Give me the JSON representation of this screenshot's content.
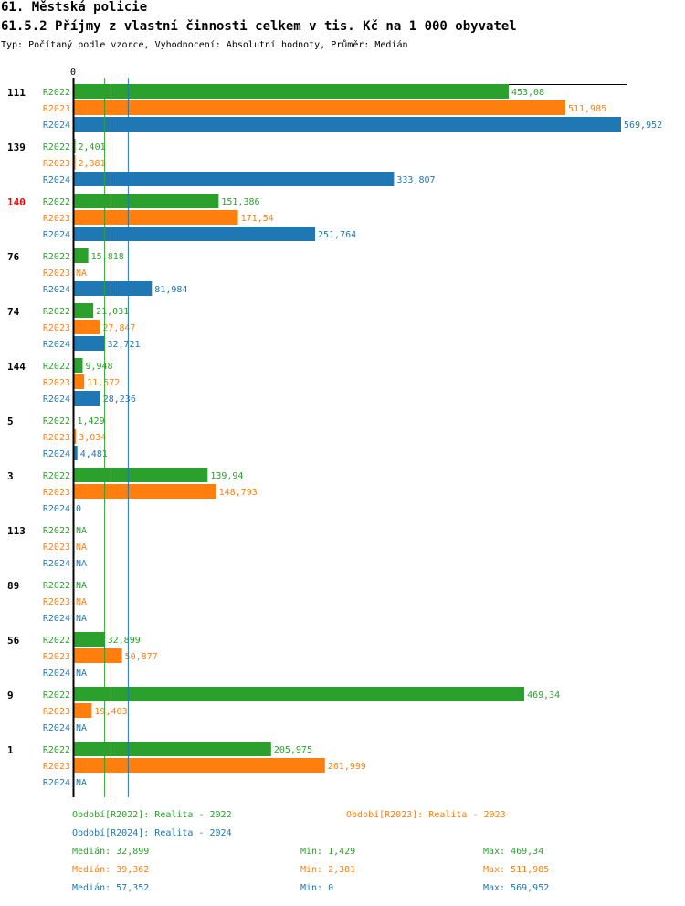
{
  "header": {
    "title": "61. Městská policie",
    "subtitle": "61.5.2 Příjmy z vlastní činnosti celkem v tis. Kč na 1 000 obyvatel",
    "meta": "Typ: Počítaný podle vzorce, Vyhodnocení: Absolutní hodnoty, Průměr: Medián"
  },
  "colors": {
    "R2022": "#2ca02c",
    "R2023": "#ff7f0e",
    "R2024": "#1f77b4",
    "highlight": "#ff0000"
  },
  "chart_data": {
    "type": "bar",
    "orientation": "horizontal",
    "axis_zero_label": "0",
    "xlim": [
      0,
      569.952
    ],
    "highlight_category": "140",
    "categories": [
      "111",
      "139",
      "140",
      "76",
      "74",
      "144",
      "5",
      "3",
      "113",
      "89",
      "56",
      "9",
      "1"
    ],
    "series": [
      {
        "name": "R2022",
        "values": [
          453.08,
          2.401,
          151.386,
          15.818,
          21.031,
          9.948,
          1.429,
          139.94,
          null,
          null,
          32.899,
          469.34,
          205.975
        ],
        "labels": [
          "453,08",
          "2,401",
          "151,386",
          "15,818",
          "21,031",
          "9,948",
          "1,429",
          "139,94",
          "NA",
          "NA",
          "32,899",
          "469,34",
          "205,975"
        ]
      },
      {
        "name": "R2023",
        "values": [
          511.985,
          2.381,
          171.54,
          null,
          27.847,
          11.572,
          3.034,
          148.793,
          null,
          null,
          50.877,
          19.403,
          261.999
        ],
        "labels": [
          "511,985",
          "2,381",
          "171,54",
          "NA",
          "27,847",
          "11,572",
          "3,034",
          "148,793",
          "NA",
          "NA",
          "50,877",
          "19,403",
          "261,999"
        ]
      },
      {
        "name": "R2024",
        "values": [
          569.952,
          333.807,
          251.764,
          81.984,
          32.721,
          28.236,
          4.481,
          0,
          null,
          null,
          null,
          null,
          null
        ],
        "labels": [
          "569,952",
          "333,807",
          "251,764",
          "81,984",
          "32,721",
          "28,236",
          "4,481",
          "0",
          "NA",
          "NA",
          "NA",
          "NA",
          "NA"
        ]
      }
    ],
    "median_lines": {
      "R2022": 32.899,
      "R2023": 39.362,
      "R2024": 57.352
    }
  },
  "legend": {
    "periods": [
      {
        "key": "R2022",
        "text": "Období[R2022]: Realita - 2022"
      },
      {
        "key": "R2023",
        "text": "Období[R2023]: Realita - 2023"
      },
      {
        "key": "R2024",
        "text": "Období[R2024]: Realita - 2024"
      }
    ],
    "stats": [
      {
        "key": "R2022",
        "median": "Medián: 32,899",
        "min": "Min: 1,429",
        "max": "Max: 469,34"
      },
      {
        "key": "R2023",
        "median": "Medián: 39,362",
        "min": "Min: 2,381",
        "max": "Max: 511,985"
      },
      {
        "key": "R2024",
        "median": "Medián: 57,352",
        "min": "Min: 0",
        "max": "Max: 569,952"
      }
    ]
  }
}
